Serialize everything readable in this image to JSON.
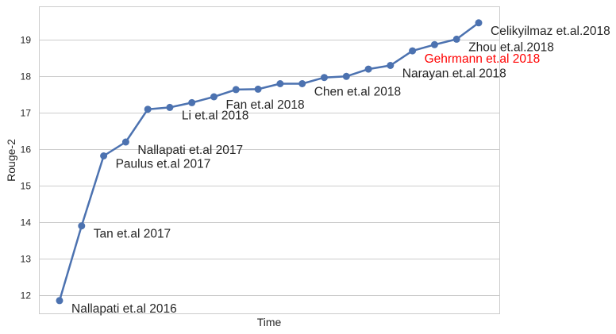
{
  "chart_data": {
    "type": "line",
    "title": "",
    "xlabel": "Time",
    "ylabel": "Rouge-2",
    "ylim": [
      11.5,
      19.9
    ],
    "yticks": [
      12,
      13,
      14,
      15,
      16,
      17,
      18,
      19
    ],
    "grid": "horizontal",
    "colors": {
      "line": "#4c72b0",
      "highlight": "#ff0000",
      "annotation": "#262626",
      "grid": "#cccccc"
    },
    "series": [
      {
        "values": [
          11.85,
          13.9,
          15.82,
          16.2,
          17.1,
          17.15,
          17.28,
          17.44,
          17.64,
          17.65,
          17.8,
          17.8,
          17.97,
          18.0,
          18.2,
          18.3,
          18.7,
          18.87,
          19.02,
          19.47
        ]
      }
    ],
    "annotations": [
      {
        "text": "Nallapati et.al 2016",
        "point": 0,
        "highlight": false
      },
      {
        "text": "Tan et.al 2017",
        "point": 1,
        "highlight": false
      },
      {
        "text": "Paulus et.al 2017",
        "point": 2,
        "highlight": false
      },
      {
        "text": "Nallapati et.al 2017",
        "point": 3,
        "highlight": false
      },
      {
        "text": "Li et.al 2018",
        "point": 5,
        "highlight": false
      },
      {
        "text": "Fan et.al 2018",
        "point": 7,
        "highlight": false
      },
      {
        "text": "Chen et.al 2018",
        "point": 11,
        "highlight": false
      },
      {
        "text": "Narayan et.al 2018",
        "point": 15,
        "highlight": false
      },
      {
        "text": "Gehrmann et.al 2018",
        "point": 16,
        "highlight": true
      },
      {
        "text": "Zhou et.al.2018",
        "point": 18,
        "highlight": false
      },
      {
        "text": "Celikyilmaz et.al.2018",
        "point": 19,
        "highlight": false
      }
    ]
  }
}
